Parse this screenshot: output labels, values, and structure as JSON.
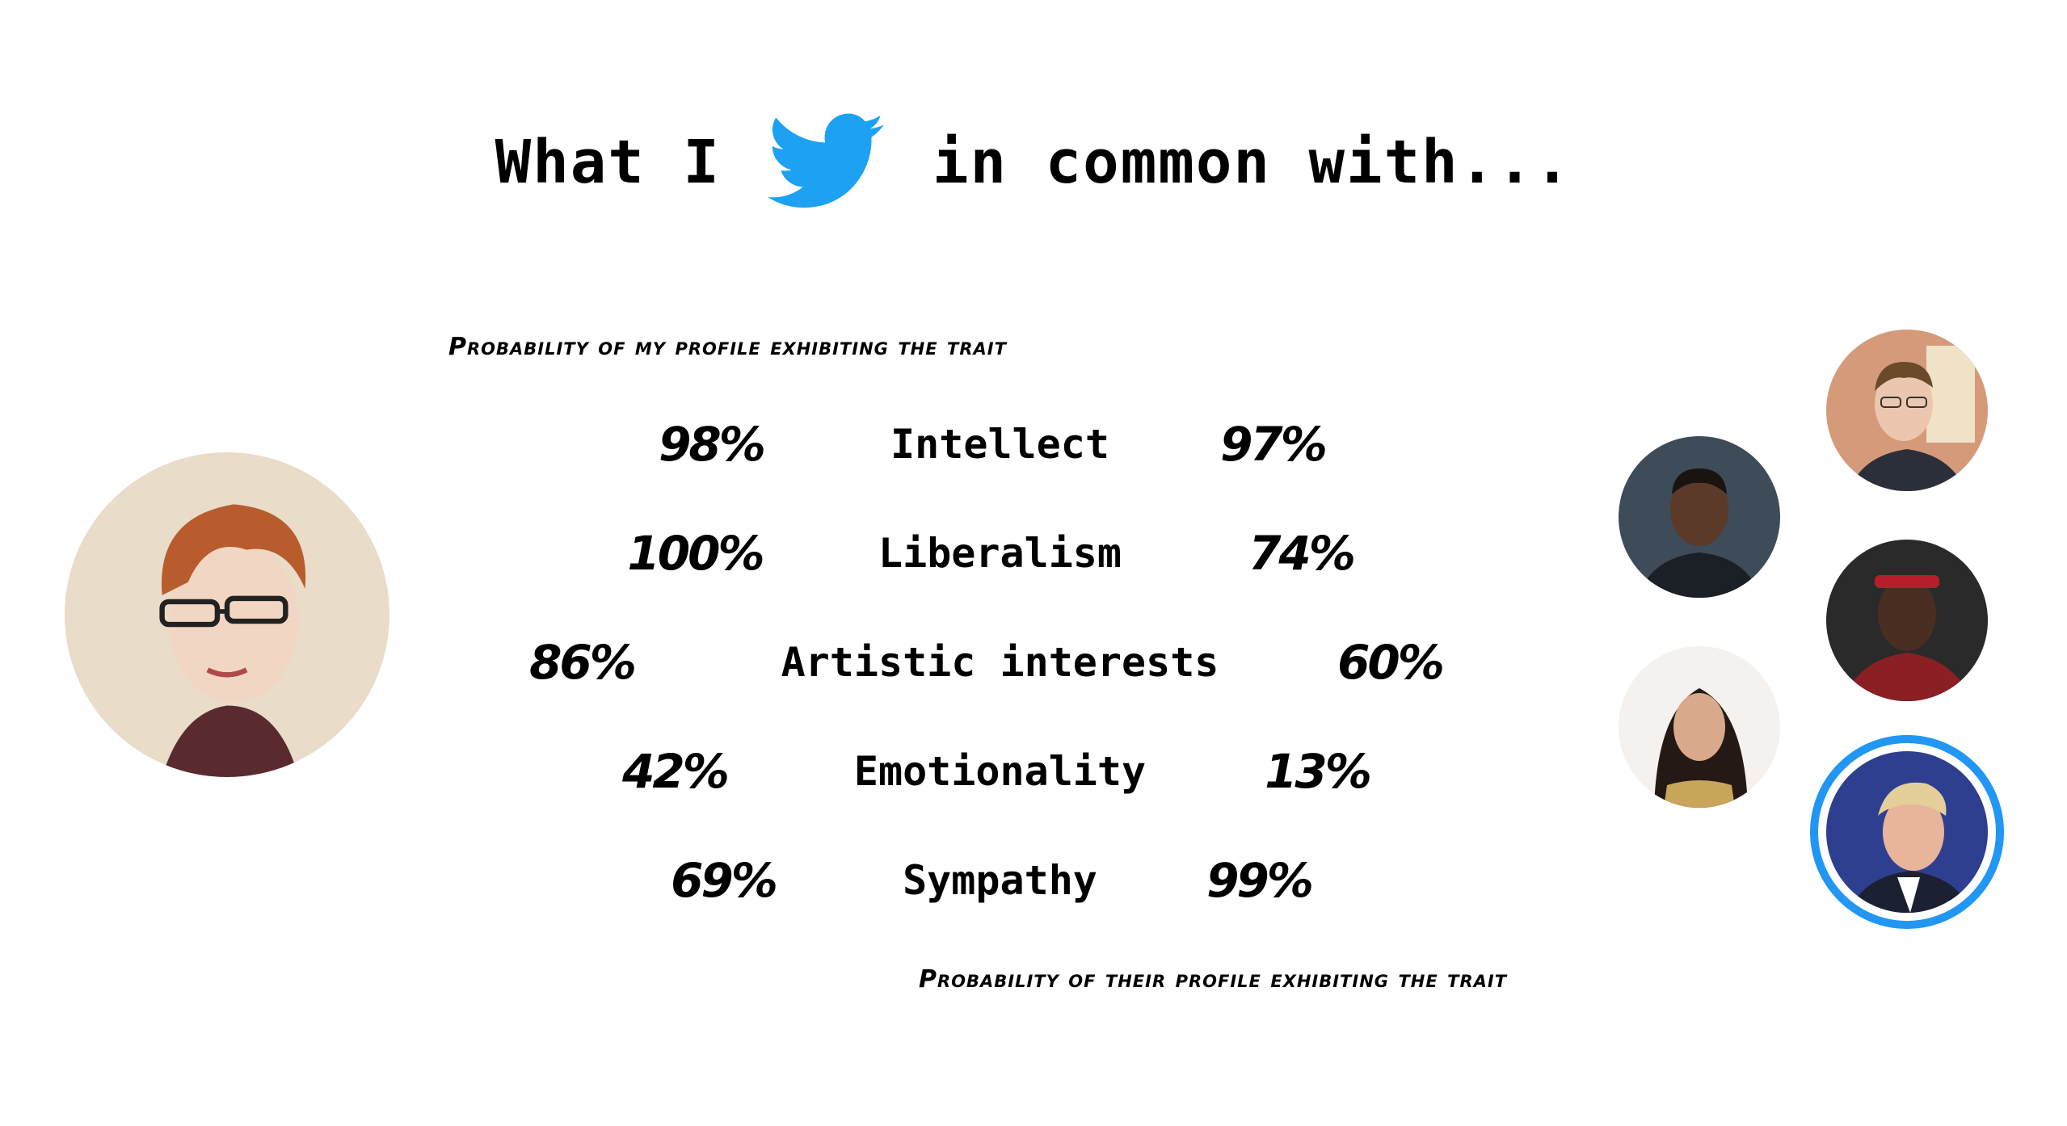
{
  "title": {
    "before": "What I",
    "icon": "twitter-bird-icon",
    "after": "in common with..."
  },
  "caption_mine": "Probability of my profile exhibiting the trait",
  "caption_theirs": "Probability of their profile exhibiting the trait",
  "traits": [
    {
      "label": "Intellect",
      "mine": "98%",
      "theirs": "97%"
    },
    {
      "label": "Liberalism",
      "mine": "100%",
      "theirs": "74%"
    },
    {
      "label": "Artistic interests",
      "mine": "86%",
      "theirs": "60%"
    },
    {
      "label": "Emotionality",
      "mine": "42%",
      "theirs": "13%"
    },
    {
      "label": "Sympathy",
      "mine": "69%",
      "theirs": "99%"
    }
  ],
  "colors": {
    "accent": "#2196f3",
    "twitter": "#1da1f2",
    "text": "#000000"
  }
}
